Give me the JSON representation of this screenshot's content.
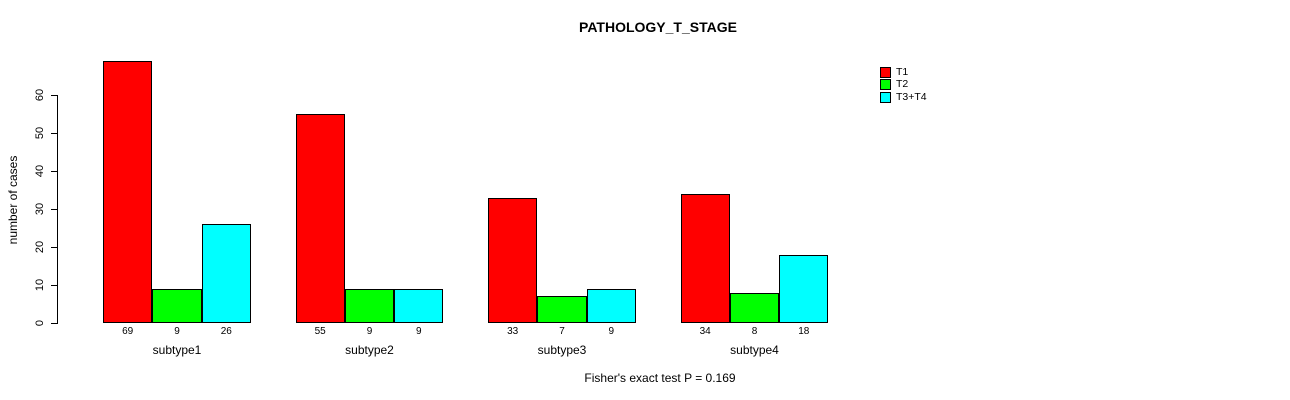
{
  "chart_data": {
    "type": "bar",
    "title": "PATHOLOGY_T_STAGE",
    "ylabel": "number of cases",
    "xlabel": "",
    "annotation": "Fisher's exact test P = 0.169",
    "categories": [
      "subtype1",
      "subtype2",
      "subtype3",
      "subtype4"
    ],
    "series": [
      {
        "name": "T1",
        "color": "#ff0000",
        "values": [
          69,
          55,
          33,
          34
        ]
      },
      {
        "name": "T2",
        "color": "#00ff00",
        "values": [
          9,
          9,
          7,
          8
        ]
      },
      {
        "name": "T3+T4",
        "color": "#00ffff",
        "values": [
          26,
          9,
          9,
          18
        ]
      }
    ],
    "bar_value_labels": [
      [
        "69",
        "9",
        "26"
      ],
      [
        "55",
        "9",
        "9"
      ],
      [
        "33",
        "7",
        "9"
      ],
      [
        "34",
        "8",
        "18"
      ]
    ],
    "ylim": [
      0,
      70
    ],
    "yticks": [
      0,
      10,
      20,
      30,
      40,
      50,
      60
    ],
    "grid": false,
    "legend_position": "top-right",
    "bar_border_color": "#000000",
    "axis_color": "#000000",
    "background_color": "#ffffff"
  }
}
